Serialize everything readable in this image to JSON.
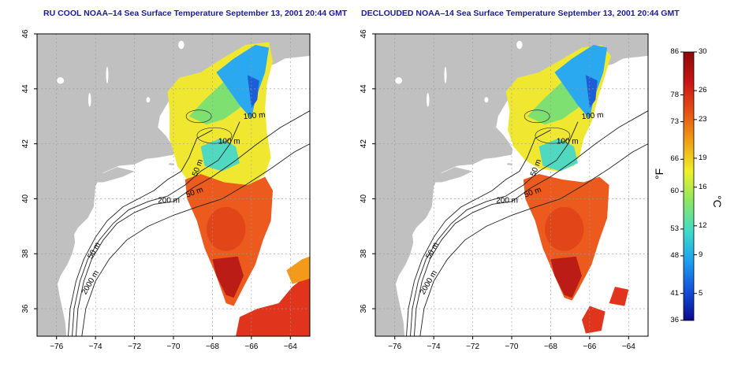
{
  "left_panel": {
    "title": "RU COOL NOAA–14 Sea Surface Temperature September 13, 2001 20:44 GMT",
    "mode": "cool"
  },
  "right_panel": {
    "title": "DECLOUDED NOAA–14 Sea Surface Temperature September 13, 2001 20:44 GMT",
    "mode": "declouded"
  },
  "map": {
    "lon_range": [
      -77,
      -63
    ],
    "lat_range": [
      35,
      46
    ],
    "lon_ticks": [
      "−76",
      "−74",
      "−72",
      "−70",
      "−68",
      "−66",
      "−64"
    ],
    "lon_tick_values": [
      -76,
      -74,
      -72,
      -70,
      -68,
      -66,
      -64
    ],
    "lat_ticks": [
      "36",
      "38",
      "40",
      "42",
      "44",
      "46"
    ],
    "lat_tick_values": [
      36,
      38,
      40,
      42,
      44,
      46
    ],
    "grid": true,
    "isobath_labels": {
      "m50": "50 m",
      "m100": "100 m",
      "m200": "200 m",
      "m2000": "2000 m"
    },
    "land_color": "#c0c0c0",
    "ocean_color": "#ffffff"
  },
  "colorbar": {
    "celsius_ticks": [
      "30",
      "26",
      "23",
      "19",
      "16",
      "12",
      "9",
      "5"
    ],
    "celsius_values": [
      30,
      26,
      23,
      19,
      16,
      12,
      9,
      5
    ],
    "fahrenheit_ticks": [
      "86",
      "78",
      "73",
      "66",
      "60",
      "53",
      "48",
      "41",
      "36"
    ],
    "fahrenheit_values": [
      86,
      78,
      73,
      66,
      60,
      53,
      48,
      41,
      36
    ],
    "unit_f": "°F",
    "unit_c": "°C",
    "range_c": [
      2.2,
      30
    ],
    "colors": [
      "#0a0a8c",
      "#1450dc",
      "#1ea0f0",
      "#40dcc8",
      "#8ce664",
      "#f0f028",
      "#f0a014",
      "#e65014",
      "#c81414",
      "#8c0a0a"
    ]
  }
}
